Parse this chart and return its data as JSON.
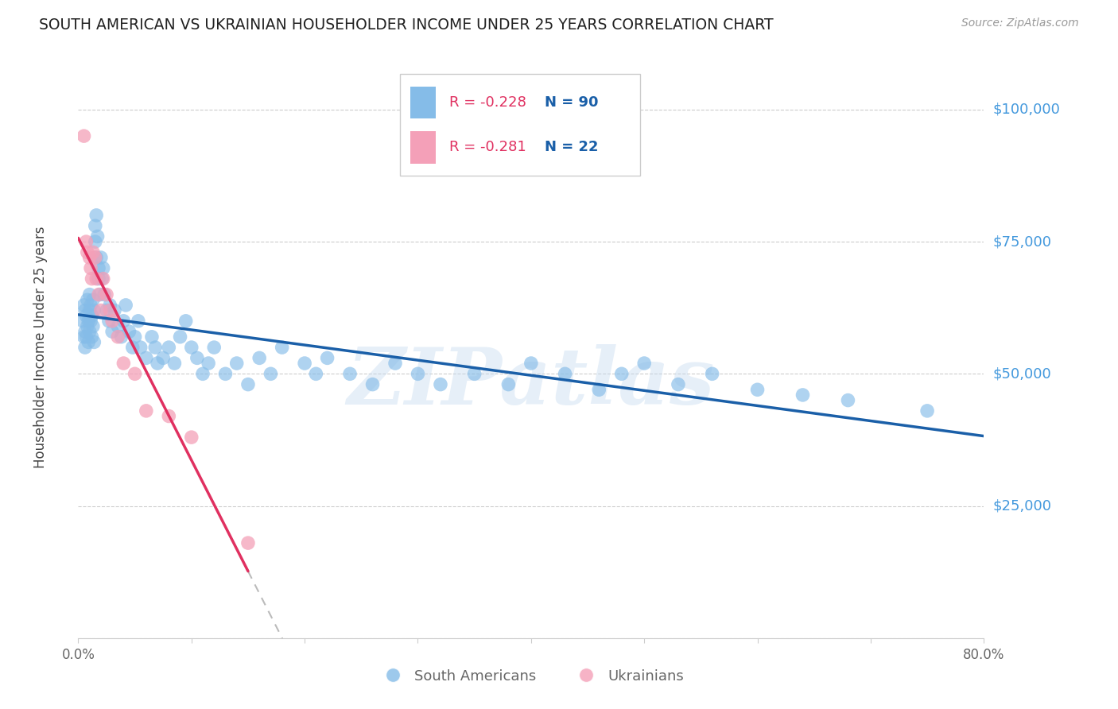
{
  "title": "SOUTH AMERICAN VS UKRAINIAN HOUSEHOLDER INCOME UNDER 25 YEARS CORRELATION CHART",
  "source": "Source: ZipAtlas.com",
  "ylabel": "Householder Income Under 25 years",
  "watermark": "ZIPatlas",
  "xlim": [
    0.0,
    0.8
  ],
  "ylim": [
    0,
    110000
  ],
  "yticks": [
    0,
    25000,
    50000,
    75000,
    100000
  ],
  "ytick_labels": [
    "",
    "$25,000",
    "$50,000",
    "$75,000",
    "$100,000"
  ],
  "blue_color": "#85bce8",
  "pink_color": "#f4a0b8",
  "line_blue": "#1a5fa8",
  "line_pink": "#e03060",
  "line_dashed_color": "#bbbbbb",
  "legend_r1": "R = -0.228",
  "legend_n1": "N = 90",
  "legend_r2": "R = -0.281",
  "legend_n2": "N = 22",
  "grid_color": "#cccccc",
  "background_color": "#ffffff",
  "south_american_x": [
    0.004,
    0.005,
    0.005,
    0.006,
    0.006,
    0.006,
    0.007,
    0.007,
    0.008,
    0.008,
    0.009,
    0.009,
    0.01,
    0.01,
    0.01,
    0.011,
    0.011,
    0.012,
    0.012,
    0.013,
    0.013,
    0.014,
    0.014,
    0.015,
    0.015,
    0.016,
    0.016,
    0.017,
    0.018,
    0.018,
    0.019,
    0.02,
    0.021,
    0.022,
    0.023,
    0.025,
    0.027,
    0.028,
    0.03,
    0.032,
    0.035,
    0.038,
    0.04,
    0.042,
    0.045,
    0.048,
    0.05,
    0.053,
    0.055,
    0.06,
    0.065,
    0.068,
    0.07,
    0.075,
    0.08,
    0.085,
    0.09,
    0.095,
    0.1,
    0.105,
    0.11,
    0.115,
    0.12,
    0.13,
    0.14,
    0.15,
    0.16,
    0.17,
    0.18,
    0.2,
    0.21,
    0.22,
    0.24,
    0.26,
    0.28,
    0.3,
    0.32,
    0.35,
    0.38,
    0.4,
    0.43,
    0.46,
    0.48,
    0.5,
    0.53,
    0.56,
    0.6,
    0.64,
    0.68,
    0.75
  ],
  "south_american_y": [
    60000,
    57000,
    63000,
    55000,
    58000,
    62000,
    57000,
    61000,
    59000,
    64000,
    56000,
    60000,
    62000,
    58000,
    65000,
    60000,
    63000,
    57000,
    61000,
    64000,
    59000,
    62000,
    56000,
    75000,
    78000,
    72000,
    80000,
    76000,
    70000,
    68000,
    65000,
    72000,
    68000,
    70000,
    65000,
    62000,
    60000,
    63000,
    58000,
    62000,
    59000,
    57000,
    60000,
    63000,
    58000,
    55000,
    57000,
    60000,
    55000,
    53000,
    57000,
    55000,
    52000,
    53000,
    55000,
    52000,
    57000,
    60000,
    55000,
    53000,
    50000,
    52000,
    55000,
    50000,
    52000,
    48000,
    53000,
    50000,
    55000,
    52000,
    50000,
    53000,
    50000,
    48000,
    52000,
    50000,
    48000,
    50000,
    48000,
    52000,
    50000,
    47000,
    50000,
    52000,
    48000,
    50000,
    47000,
    46000,
    45000,
    43000
  ],
  "ukrainian_x": [
    0.005,
    0.007,
    0.008,
    0.01,
    0.011,
    0.012,
    0.013,
    0.015,
    0.016,
    0.018,
    0.02,
    0.022,
    0.025,
    0.028,
    0.03,
    0.035,
    0.04,
    0.05,
    0.06,
    0.08,
    0.1,
    0.15
  ],
  "ukrainian_y": [
    95000,
    75000,
    73000,
    72000,
    70000,
    68000,
    73000,
    72000,
    68000,
    65000,
    62000,
    68000,
    65000,
    62000,
    60000,
    57000,
    52000,
    50000,
    43000,
    42000,
    38000,
    18000
  ]
}
